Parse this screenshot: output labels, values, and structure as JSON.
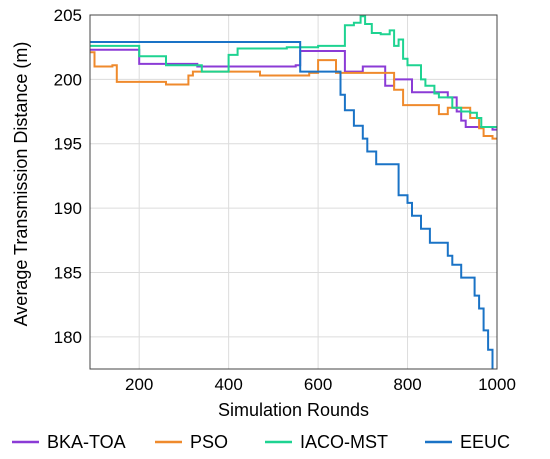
{
  "chart_data": {
    "type": "line",
    "xlabel": "Simulation Rounds",
    "ylabel": "Average Transmission Distance (m)",
    "xlim": [
      90,
      1000
    ],
    "ylim": [
      177.5,
      205
    ],
    "xticks": [
      200,
      400,
      600,
      800,
      1000
    ],
    "yticks": [
      180,
      185,
      190,
      195,
      200,
      205
    ],
    "grid": true,
    "legend": "bottom",
    "series": [
      {
        "name": "BKA-TOA",
        "color": "#8b3bd6",
        "points": [
          [
            90,
            202.3
          ],
          [
            200,
            202.3
          ],
          [
            200,
            201.2
          ],
          [
            330,
            201.2
          ],
          [
            330,
            201.0
          ],
          [
            550,
            201.0
          ],
          [
            550,
            201.1
          ],
          [
            560,
            201.1
          ],
          [
            560,
            202.2
          ],
          [
            660,
            202.2
          ],
          [
            660,
            200.6
          ],
          [
            700,
            200.6
          ],
          [
            700,
            201.0
          ],
          [
            750,
            201.0
          ],
          [
            750,
            199.5
          ],
          [
            770,
            199.5
          ],
          [
            770,
            200.0
          ],
          [
            810,
            200.0
          ],
          [
            810,
            199.0
          ],
          [
            890,
            199.0
          ],
          [
            890,
            198.6
          ],
          [
            910,
            198.6
          ],
          [
            910,
            197.5
          ],
          [
            920,
            197.5
          ],
          [
            920,
            196.8
          ],
          [
            930,
            196.8
          ],
          [
            930,
            196.3
          ],
          [
            990,
            196.3
          ],
          [
            990,
            196.1
          ],
          [
            1000,
            196.1
          ]
        ]
      },
      {
        "name": "PSO",
        "color": "#ef8a2c",
        "points": [
          [
            90,
            202.1
          ],
          [
            100,
            202.1
          ],
          [
            100,
            201.0
          ],
          [
            140,
            201.0
          ],
          [
            140,
            201.1
          ],
          [
            150,
            201.1
          ],
          [
            150,
            199.8
          ],
          [
            260,
            199.8
          ],
          [
            260,
            199.6
          ],
          [
            310,
            199.6
          ],
          [
            310,
            200.3
          ],
          [
            320,
            200.3
          ],
          [
            320,
            200.6
          ],
          [
            470,
            200.6
          ],
          [
            470,
            200.3
          ],
          [
            580,
            200.3
          ],
          [
            580,
            200.5
          ],
          [
            600,
            200.5
          ],
          [
            600,
            201.5
          ],
          [
            640,
            201.5
          ],
          [
            640,
            200.5
          ],
          [
            770,
            200.5
          ],
          [
            770,
            199.2
          ],
          [
            790,
            199.2
          ],
          [
            790,
            198.0
          ],
          [
            870,
            198.0
          ],
          [
            870,
            197.3
          ],
          [
            890,
            197.3
          ],
          [
            890,
            197.8
          ],
          [
            940,
            197.8
          ],
          [
            940,
            197.0
          ],
          [
            960,
            197.0
          ],
          [
            960,
            196.2
          ],
          [
            970,
            196.2
          ],
          [
            970,
            195.6
          ],
          [
            990,
            195.6
          ],
          [
            990,
            195.4
          ],
          [
            1000,
            195.4
          ]
        ]
      },
      {
        "name": "IACO-MST",
        "color": "#1ed391",
        "points": [
          [
            90,
            202.6
          ],
          [
            200,
            202.6
          ],
          [
            200,
            201.8
          ],
          [
            260,
            201.8
          ],
          [
            260,
            201.1
          ],
          [
            340,
            201.1
          ],
          [
            340,
            200.6
          ],
          [
            400,
            200.6
          ],
          [
            400,
            201.9
          ],
          [
            420,
            201.9
          ],
          [
            420,
            202.4
          ],
          [
            530,
            202.4
          ],
          [
            530,
            202.5
          ],
          [
            600,
            202.5
          ],
          [
            600,
            202.6
          ],
          [
            660,
            202.6
          ],
          [
            660,
            204.2
          ],
          [
            680,
            204.2
          ],
          [
            680,
            204.4
          ],
          [
            695,
            204.4
          ],
          [
            695,
            204.9
          ],
          [
            705,
            204.9
          ],
          [
            705,
            204.3
          ],
          [
            720,
            204.3
          ],
          [
            720,
            203.6
          ],
          [
            740,
            203.6
          ],
          [
            740,
            203.5
          ],
          [
            760,
            203.5
          ],
          [
            760,
            203.8
          ],
          [
            770,
            203.8
          ],
          [
            770,
            202.6
          ],
          [
            780,
            202.6
          ],
          [
            780,
            203.1
          ],
          [
            790,
            203.1
          ],
          [
            790,
            201.6
          ],
          [
            800,
            201.6
          ],
          [
            800,
            201.1
          ],
          [
            830,
            201.1
          ],
          [
            830,
            200.0
          ],
          [
            840,
            200.0
          ],
          [
            840,
            199.5
          ],
          [
            860,
            199.5
          ],
          [
            860,
            198.9
          ],
          [
            870,
            198.9
          ],
          [
            870,
            198.6
          ],
          [
            900,
            198.6
          ],
          [
            900,
            197.8
          ],
          [
            920,
            197.8
          ],
          [
            920,
            197.5
          ],
          [
            940,
            197.5
          ],
          [
            940,
            197.4
          ],
          [
            955,
            197.4
          ],
          [
            955,
            197.0
          ],
          [
            965,
            197.0
          ],
          [
            965,
            196.3
          ],
          [
            1000,
            196.3
          ]
        ]
      },
      {
        "name": "EEUC",
        "color": "#1a73c6",
        "points": [
          [
            90,
            202.9
          ],
          [
            560,
            202.9
          ],
          [
            560,
            200.6
          ],
          [
            650,
            200.6
          ],
          [
            650,
            198.8
          ],
          [
            660,
            198.8
          ],
          [
            660,
            197.6
          ],
          [
            680,
            197.6
          ],
          [
            680,
            196.4
          ],
          [
            700,
            196.4
          ],
          [
            700,
            195.4
          ],
          [
            710,
            195.4
          ],
          [
            710,
            194.4
          ],
          [
            730,
            194.4
          ],
          [
            730,
            193.4
          ],
          [
            780,
            193.4
          ],
          [
            780,
            191.0
          ],
          [
            800,
            191.0
          ],
          [
            800,
            190.4
          ],
          [
            810,
            190.4
          ],
          [
            810,
            189.4
          ],
          [
            830,
            189.4
          ],
          [
            830,
            188.4
          ],
          [
            850,
            188.4
          ],
          [
            850,
            187.3
          ],
          [
            890,
            187.3
          ],
          [
            890,
            186.3
          ],
          [
            900,
            186.3
          ],
          [
            900,
            185.6
          ],
          [
            920,
            185.6
          ],
          [
            920,
            184.6
          ],
          [
            950,
            184.6
          ],
          [
            950,
            183.2
          ],
          [
            960,
            183.2
          ],
          [
            960,
            182.2
          ],
          [
            970,
            182.2
          ],
          [
            970,
            180.5
          ],
          [
            980,
            180.5
          ],
          [
            980,
            179.0
          ],
          [
            990,
            179.0
          ],
          [
            990,
            177.5
          ]
        ]
      }
    ]
  }
}
